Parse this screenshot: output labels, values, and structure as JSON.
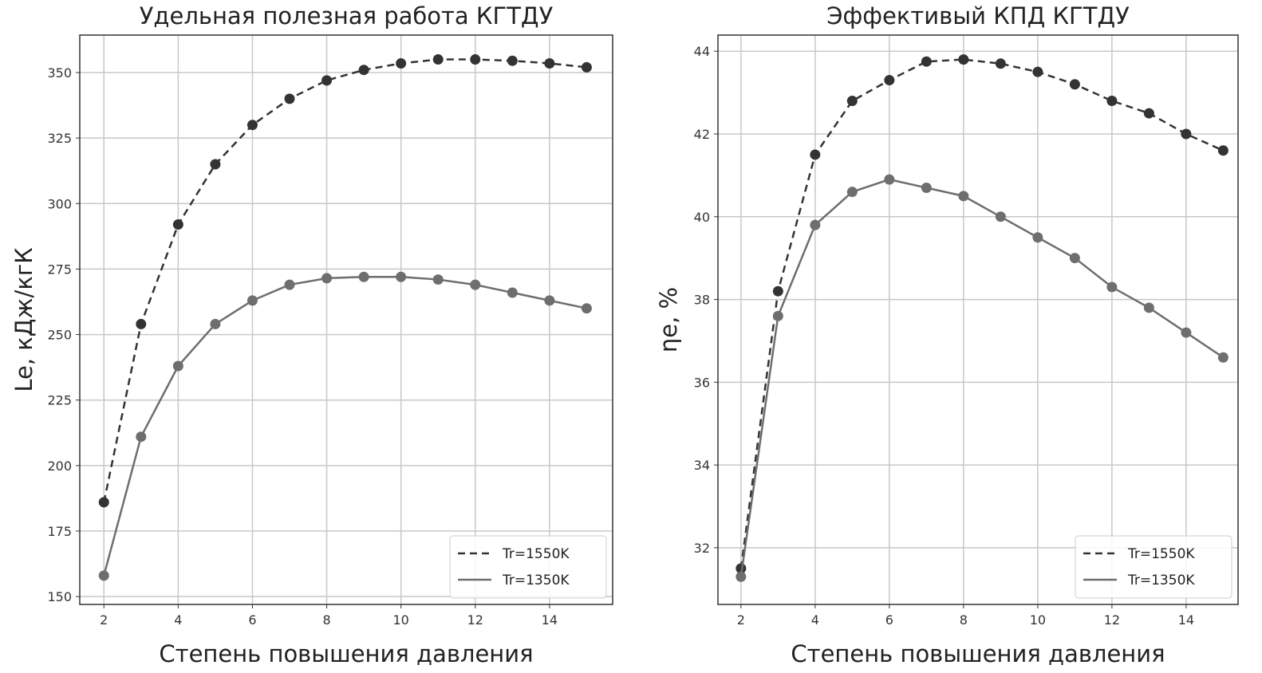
{
  "chart_data": [
    {
      "type": "line",
      "title": "Удельная полезная работа КГТДУ",
      "xlabel": "Степень повышения давления",
      "ylabel": "Le, кДж/кгК",
      "xlim": [
        1.35,
        15.7
      ],
      "ylim": [
        147,
        364.3
      ],
      "xticks": [
        2,
        4,
        6,
        8,
        10,
        12,
        14
      ],
      "yticks": [
        150,
        175,
        200,
        225,
        250,
        275,
        300,
        325,
        350
      ],
      "grid": true,
      "legend_position": "bottom-right",
      "x": [
        2,
        3,
        4,
        5,
        6,
        7,
        8,
        9,
        10,
        11,
        12,
        13,
        14,
        15
      ],
      "series": [
        {
          "name": "Tr=1550K",
          "style": "dashed",
          "color": "#333333",
          "values": [
            186,
            254,
            292,
            315,
            330,
            340,
            347,
            351,
            353.5,
            355,
            355,
            354.5,
            353.5,
            352
          ]
        },
        {
          "name": "Tr=1350K",
          "style": "solid",
          "color": "#6e6e6e",
          "values": [
            158,
            211,
            238,
            254,
            263,
            269,
            271.5,
            272,
            272,
            271,
            269,
            266,
            263,
            260
          ]
        }
      ]
    },
    {
      "type": "line",
      "title": "Эффективый КПД КГТДУ",
      "xlabel": "Степень повышения давления",
      "ylabel": "ηe, %",
      "xlim": [
        1.38,
        15.4
      ],
      "ylim": [
        30.63,
        44.39
      ],
      "xticks": [
        2,
        4,
        6,
        8,
        10,
        12,
        14
      ],
      "yticks": [
        32,
        34,
        36,
        38,
        40,
        42,
        44
      ],
      "grid": true,
      "legend_position": "bottom-right",
      "x": [
        2,
        3,
        4,
        5,
        6,
        7,
        8,
        9,
        10,
        11,
        12,
        13,
        14,
        15
      ],
      "series": [
        {
          "name": "Tr=1550K",
          "style": "dashed",
          "color": "#333333",
          "values": [
            31.5,
            38.2,
            41.5,
            42.8,
            43.3,
            43.75,
            43.8,
            43.7,
            43.5,
            43.2,
            42.8,
            42.5,
            42.0,
            41.6
          ]
        },
        {
          "name": "Tr=1350K",
          "style": "solid",
          "color": "#6e6e6e",
          "values": [
            31.3,
            37.6,
            39.8,
            40.6,
            40.9,
            40.7,
            40.5,
            40.0,
            39.5,
            39.0,
            38.3,
            37.8,
            37.2,
            36.6
          ]
        }
      ]
    }
  ]
}
